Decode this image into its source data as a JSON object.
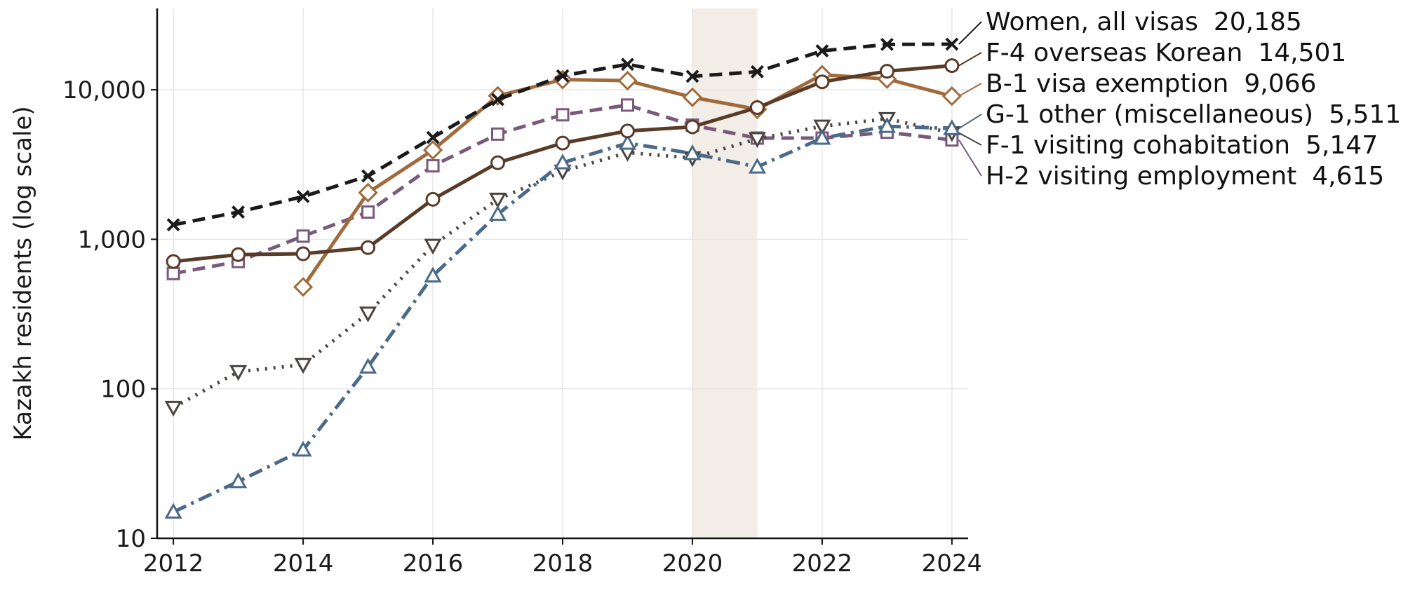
{
  "chart_data": {
    "type": "line",
    "title": "",
    "xlabel": "",
    "ylabel": "Kazakh residents (log scale)",
    "yscale": "log",
    "xlim": [
      2011.75,
      2024.25
    ],
    "ylim": [
      10,
      35000
    ],
    "grid": true,
    "legend": "right, direct labels at line ends",
    "x_ticks": [
      2012,
      2014,
      2016,
      2018,
      2020,
      2022,
      2024
    ],
    "x_tick_labels": [
      "2012",
      "2014",
      "2016",
      "2018",
      "2020",
      "2022",
      "2024"
    ],
    "y_ticks": [
      10,
      100,
      1000,
      10000
    ],
    "y_tick_labels": [
      "10",
      "100",
      "1,000",
      "10,000"
    ],
    "shaded_span": [
      2020,
      2021
    ],
    "series": [
      {
        "name": "Women, all visas",
        "end_label": "20,185",
        "color": "#1a1a1a",
        "dash": "dashed",
        "marker": "x",
        "x": [
          2012,
          2013,
          2014,
          2015,
          2016,
          2017,
          2018,
          2019,
          2020,
          2021,
          2022,
          2023,
          2024
        ],
        "values": [
          1250,
          1520,
          1930,
          2650,
          4800,
          8600,
          12400,
          14800,
          12300,
          13200,
          18200,
          20100,
          20185
        ]
      },
      {
        "name": "F-4 overseas Korean",
        "end_label": "14,501",
        "color": "#5a3b28",
        "dash": "solid",
        "marker": "circle",
        "x": [
          2012,
          2013,
          2014,
          2015,
          2016,
          2017,
          2018,
          2019,
          2020,
          2021,
          2022,
          2023,
          2024
        ],
        "values": [
          710,
          790,
          800,
          880,
          1850,
          3250,
          4400,
          5300,
          5650,
          7600,
          11300,
          13300,
          14501
        ]
      },
      {
        "name": "B-1 visa exemption",
        "end_label": "9,066",
        "color": "#a06b3c",
        "dash": "solid",
        "marker": "diamond",
        "x": [
          2014,
          2015,
          2016,
          2017,
          2018,
          2019,
          2020,
          2021,
          2022,
          2023,
          2024
        ],
        "values": [
          480,
          2050,
          3950,
          9100,
          11700,
          11500,
          8900,
          7400,
          12600,
          11800,
          9066
        ]
      },
      {
        "name": "G-1 other (miscellaneous)",
        "end_label": "5,511",
        "color": "#4a6a8a",
        "dash": "dashdot",
        "marker": "triangle-up",
        "x": [
          2012,
          2013,
          2014,
          2015,
          2016,
          2017,
          2018,
          2019,
          2020,
          2021,
          2022,
          2023,
          2024
        ],
        "values": [
          15,
          24,
          39,
          140,
          570,
          1470,
          3250,
          4400,
          3750,
          3050,
          4750,
          5700,
          5511
        ]
      },
      {
        "name": "F-1 visiting cohabitation",
        "end_label": "5,147",
        "color": "#4a4540",
        "dash": "dotted",
        "marker": "triangle-down",
        "x": [
          2012,
          2013,
          2014,
          2015,
          2016,
          2017,
          2018,
          2019,
          2020,
          2021,
          2022,
          2023,
          2024
        ],
        "values": [
          75,
          130,
          145,
          320,
          910,
          1850,
          2850,
          3800,
          3500,
          4700,
          5700,
          6400,
          5147
        ]
      },
      {
        "name": "H-2 visiting employment",
        "end_label": "4,615",
        "color": "#7a5a7a",
        "dash": "dashed",
        "marker": "square",
        "x": [
          2012,
          2013,
          2014,
          2015,
          2016,
          2017,
          2018,
          2019,
          2020,
          2021,
          2022,
          2023,
          2024
        ],
        "values": [
          590,
          710,
          1050,
          1520,
          3100,
          5050,
          6800,
          7900,
          5800,
          4750,
          4750,
          5200,
          4615
        ]
      }
    ]
  }
}
